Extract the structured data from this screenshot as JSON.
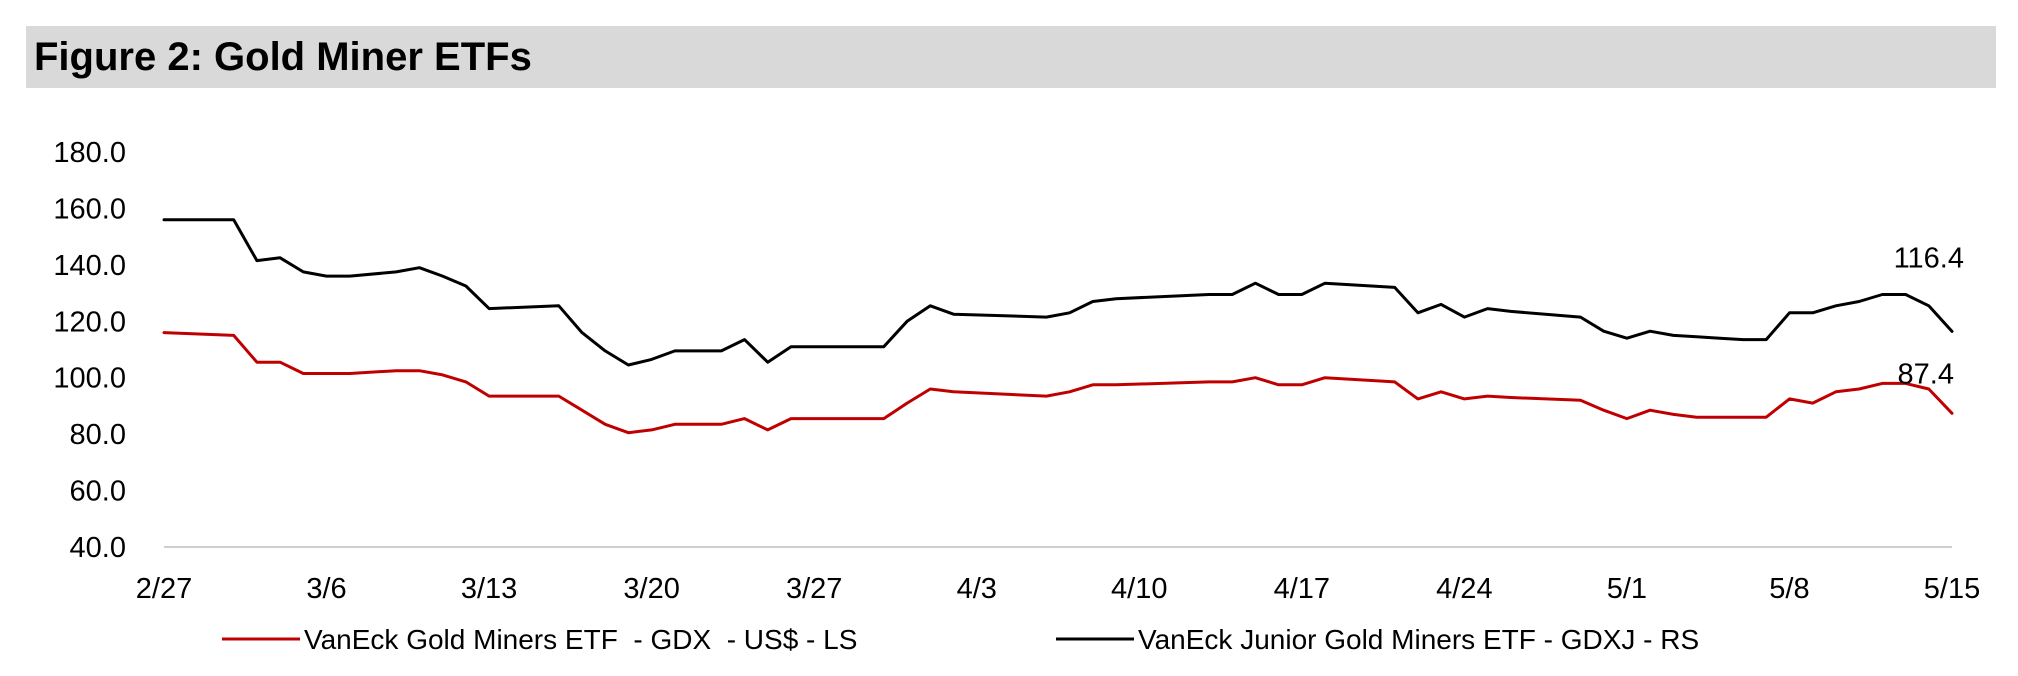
{
  "figure_title": "Figure 2: Gold Miner ETFs",
  "chart_data": {
    "type": "line",
    "title": "Figure 2: Gold Miner ETFs",
    "xlabel": "",
    "ylabel": "",
    "ylim": [
      40,
      180
    ],
    "yticks": [
      "40.0",
      "60.0",
      "80.0",
      "100.0",
      "120.0",
      "140.0",
      "160.0",
      "180.0"
    ],
    "x_tick_labels": [
      "2/27",
      "3/6",
      "3/13",
      "3/20",
      "3/27",
      "4/3",
      "4/10",
      "4/17",
      "4/24",
      "5/1",
      "5/8",
      "5/15"
    ],
    "x_tick_days": [
      0,
      7,
      14,
      21,
      28,
      35,
      42,
      49,
      56,
      63,
      70,
      77
    ],
    "x_range_days": [
      0,
      77
    ],
    "grid": false,
    "legend_position": "bottom",
    "series": [
      {
        "name": "VanEck Gold Miners ETF  - GDX  - US$ - LS",
        "color": "#c00000",
        "x": [
          0,
          3,
          4,
          5,
          6,
          7,
          8,
          10,
          11,
          12,
          13,
          14,
          17,
          18,
          19,
          20,
          21,
          22,
          24,
          25,
          26,
          27,
          28,
          31,
          32,
          33,
          34,
          38,
          39,
          40,
          41,
          45,
          46,
          47,
          48,
          49,
          50,
          53,
          54,
          55,
          56,
          57,
          58,
          61,
          62,
          63,
          64,
          65,
          66,
          67,
          68,
          69,
          70,
          71,
          72,
          73,
          74,
          75,
          76,
          77
        ],
        "y": [
          116,
          115,
          105.5,
          105.5,
          101.5,
          101.5,
          101.5,
          102.5,
          102.5,
          101,
          98.5,
          93.5,
          93.5,
          88.5,
          83.5,
          80.5,
          81.5,
          83.5,
          83.5,
          85.5,
          81.5,
          85.5,
          85.5,
          85.5,
          91,
          96,
          95,
          93.5,
          95,
          97.5,
          97.5,
          98.5,
          98.5,
          100,
          97.5,
          97.5,
          100,
          98.5,
          92.5,
          95,
          92.5,
          93.5,
          93,
          92,
          88.5,
          85.5,
          88.5,
          87,
          86,
          86,
          86,
          86,
          92.5,
          91,
          95,
          96,
          98,
          98,
          96,
          87.4
        ]
      },
      {
        "name": "VanEck Junior Gold Miners ETF - GDXJ - RS",
        "color": "#000000",
        "x": [
          0,
          3,
          4,
          5,
          6,
          7,
          8,
          10,
          11,
          12,
          13,
          14,
          17,
          18,
          19,
          20,
          21,
          22,
          24,
          25,
          26,
          27,
          28,
          31,
          32,
          33,
          34,
          38,
          39,
          40,
          41,
          45,
          46,
          47,
          48,
          49,
          50,
          53,
          54,
          55,
          56,
          57,
          58,
          61,
          62,
          63,
          64,
          65,
          66,
          67,
          68,
          69,
          70,
          71,
          72,
          73,
          74,
          75,
          76,
          77
        ],
        "y": [
          156,
          156,
          141.5,
          142.5,
          137.5,
          136,
          136,
          137.5,
          139,
          136,
          132.5,
          124.5,
          125.5,
          116,
          109.5,
          104.5,
          106.5,
          109.5,
          109.5,
          113.5,
          105.5,
          111,
          111,
          111,
          120,
          125.5,
          122.5,
          121.5,
          123,
          127,
          128,
          129.5,
          129.5,
          133.5,
          129.5,
          129.5,
          133.5,
          132,
          123,
          126,
          121.5,
          124.5,
          123.5,
          121.5,
          116.5,
          114,
          116.5,
          115,
          114.5,
          114,
          113.5,
          113.5,
          123,
          123,
          125.5,
          127,
          129.5,
          129.5,
          125.5,
          116.4
        ]
      }
    ],
    "end_labels": [
      "116.4",
      "87.4"
    ]
  }
}
